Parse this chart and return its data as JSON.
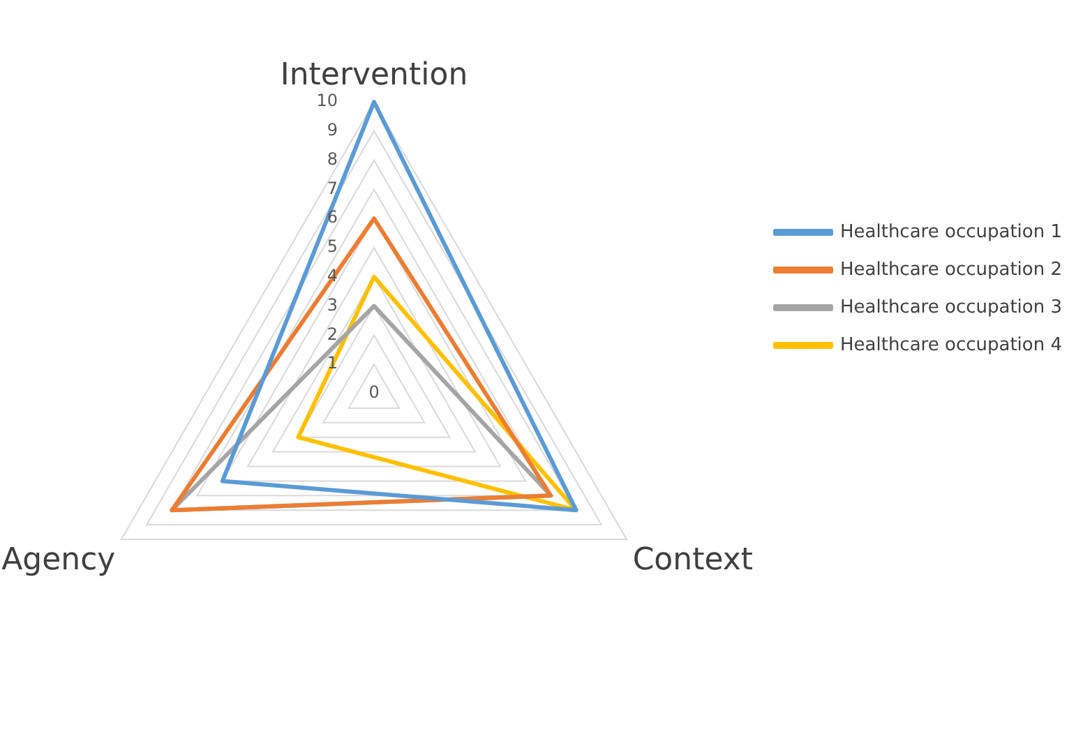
{
  "chart_data": {
    "type": "radar",
    "categories": [
      "Intervention",
      "Context",
      "Agency"
    ],
    "series": [
      {
        "name": "Healthcare occupation 1",
        "color": "#5b9bd5",
        "values": [
          10,
          8,
          6
        ]
      },
      {
        "name": "Healthcare occupation 2",
        "color": "#ed7d31",
        "values": [
          6,
          7,
          8
        ]
      },
      {
        "name": "Healthcare occupation 3",
        "color": "#a5a5a5",
        "values": [
          3,
          7,
          8
        ]
      },
      {
        "name": "Healthcare occupation 4",
        "color": "#ffc000",
        "values": [
          4,
          8,
          3
        ]
      }
    ],
    "ylim": [
      0,
      10
    ],
    "yticks": [
      0,
      1,
      2,
      3,
      4,
      5,
      6,
      7,
      8,
      9,
      10
    ],
    "grid": true,
    "legend": "right",
    "marker": "none"
  }
}
